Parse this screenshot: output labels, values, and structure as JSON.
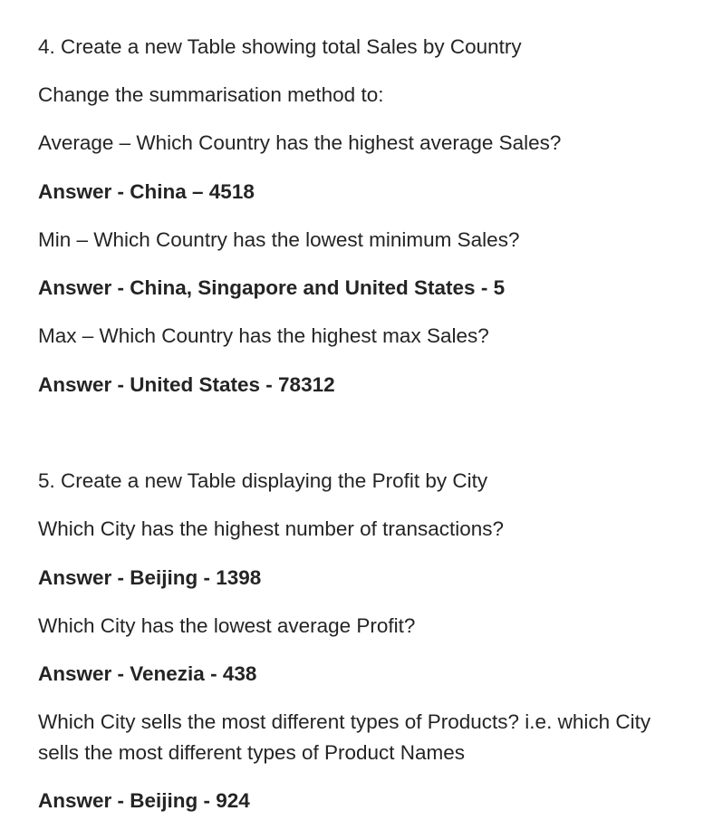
{
  "sections": [
    {
      "heading": "4. Create a new Table showing total Sales by Country",
      "intro": "Change the summarisation method to:",
      "qa": [
        {
          "question": "Average – Which Country has the highest average Sales?",
          "answer": "Answer - China – 4518"
        },
        {
          "question": "Min – Which Country has the lowest minimum Sales?",
          "answer": "Answer - China, Singapore and United States - 5"
        },
        {
          "question": "Max – Which Country has the highest max Sales?",
          "answer": "Answer - United States - 78312"
        }
      ]
    },
    {
      "heading": "5. Create a new Table displaying the Profit by City",
      "qa": [
        {
          "question": "Which City has the highest number of transactions?",
          "answer": "Answer - Beijing - 1398"
        },
        {
          "question": "Which City has the lowest average Profit?",
          "answer": "Answer - Venezia - 438"
        },
        {
          "question": "Which City sells the most different types of Products? i.e. which City sells the most different types of Product Names",
          "answer": "Answer - Beijing - 924"
        }
      ]
    }
  ]
}
